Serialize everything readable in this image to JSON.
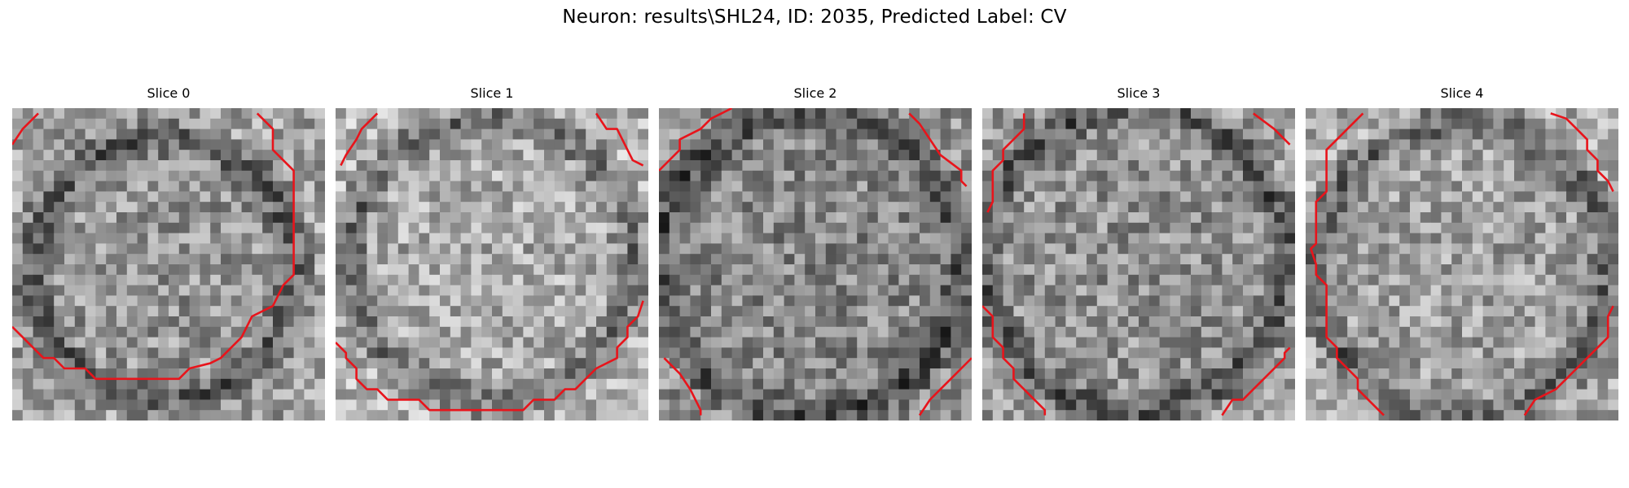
{
  "figure": {
    "title": "Neuron: results\\SHL24, ID: 2035, Predicted Label: CV"
  },
  "panels": [
    {
      "title": "Slice 0"
    },
    {
      "title": "Slice 1"
    },
    {
      "title": "Slice 2"
    },
    {
      "title": "Slice 3"
    },
    {
      "title": "Slice 4"
    }
  ],
  "style": {
    "contour_color": "#e8141b",
    "colormap": "grayscale"
  }
}
